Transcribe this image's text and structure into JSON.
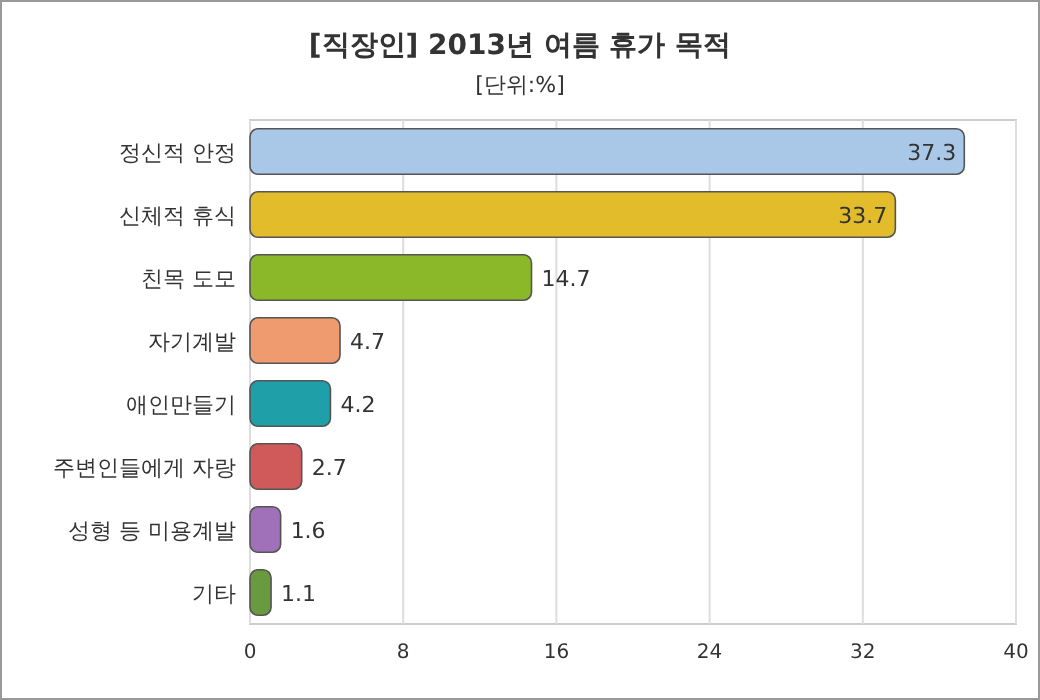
{
  "chart_data": {
    "type": "bar",
    "orientation": "horizontal",
    "title": "[직장인] 2013년 여름 휴가 목적",
    "subtitle": "[단위:%]",
    "categories": [
      "정신적 안정",
      "신체적 휴식",
      "친목 도모",
      "자기계발",
      "애인만들기",
      "주변인들에게 자랑",
      "성형 등 미용계발",
      "기타"
    ],
    "values": [
      37.3,
      33.7,
      14.7,
      4.7,
      4.2,
      2.7,
      1.6,
      1.1
    ],
    "colors": [
      "#a9c8e8",
      "#e2bc2a",
      "#8ab828",
      "#f09a70",
      "#1fa0a8",
      "#d05a5a",
      "#a070b8",
      "#6a9a40"
    ],
    "xlim": [
      0,
      40
    ],
    "xticks": [
      0,
      8,
      16,
      24,
      32,
      40
    ],
    "grid": "x",
    "data_labels": true
  }
}
